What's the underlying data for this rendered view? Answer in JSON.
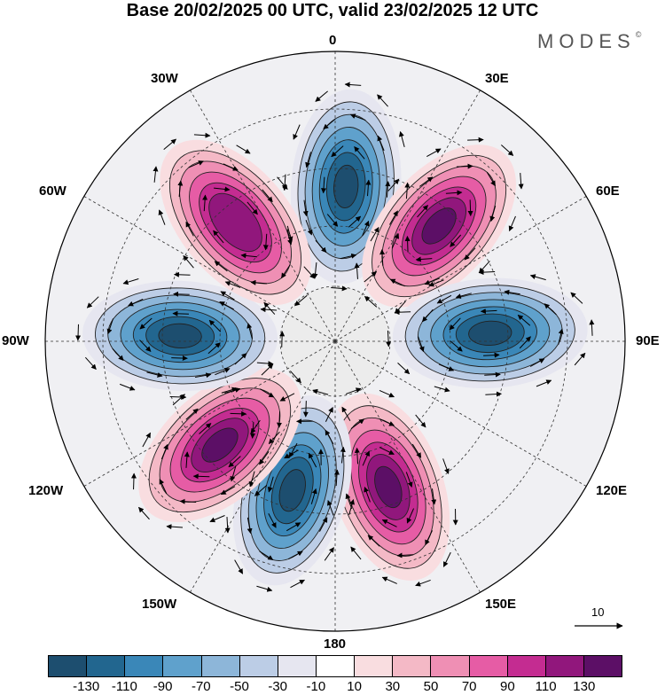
{
  "title": "Base 20/02/2025 00 UTC, valid 23/02/2025 12 UTC",
  "brand": "MODES",
  "brand_mark": "©",
  "longitude_labels": {
    "n": "0",
    "ne1": "30E",
    "ne2": "60E",
    "e": "90E",
    "se1": "120E",
    "se2": "150E",
    "s": "180",
    "sw2": "150W",
    "sw1": "120W",
    "w": "90W",
    "nw2": "60W",
    "nw1": "30W"
  },
  "vector_scale": {
    "label": "10"
  },
  "colorbar": {
    "colors": [
      "#1d4e6f",
      "#22668f",
      "#3a87b8",
      "#5fa1cc",
      "#8db6d9",
      "#bccde6",
      "#e6e6f0",
      "#ffffff",
      "#f9dde0",
      "#f4b9c6",
      "#ef8fb4",
      "#e65ca5",
      "#c42c91",
      "#91177c",
      "#5c0f66"
    ],
    "labels": [
      "-130",
      "-110",
      "-90",
      "-70",
      "-50",
      "-30",
      "-10",
      "10",
      "30",
      "50",
      "70",
      "90",
      "110",
      "130"
    ]
  },
  "features": {
    "lobes": [
      {
        "name": "negative-anomaly-0",
        "sign": "negative",
        "bearing": 4,
        "peak": -130
      },
      {
        "name": "positive-anomaly-30e",
        "sign": "positive",
        "bearing": 42,
        "peak": 130
      },
      {
        "name": "negative-anomaly-90e",
        "sign": "negative",
        "bearing": 87,
        "peak": -130
      },
      {
        "name": "positive-anomaly-150e",
        "sign": "positive",
        "bearing": 160,
        "peak": 110
      },
      {
        "name": "negative-anomaly-180",
        "sign": "negative",
        "bearing": 196,
        "peak": -130
      },
      {
        "name": "positive-anomaly-150w",
        "sign": "positive",
        "bearing": 228,
        "peak": 110
      },
      {
        "name": "negative-anomaly-100w",
        "sign": "negative",
        "bearing": 272,
        "peak": -110
      },
      {
        "name": "positive-anomaly-40w",
        "sign": "positive",
        "bearing": 320,
        "peak": 90
      }
    ]
  }
}
